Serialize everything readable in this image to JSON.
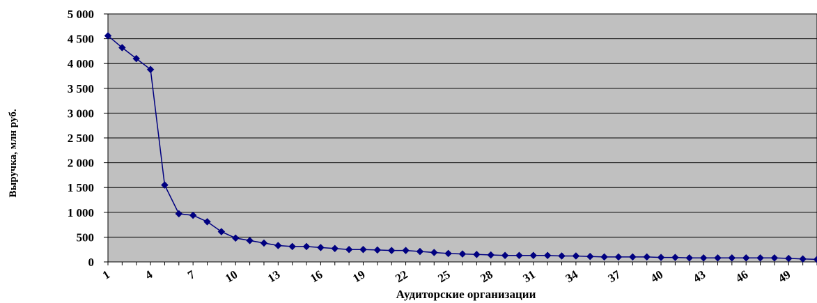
{
  "chart_data": {
    "type": "line",
    "xlabel": "Аудиторские организации",
    "ylabel": "Выручка, млн руб.",
    "ylim": [
      0,
      5000
    ],
    "y_ticks": [
      "0",
      "500",
      "1 000",
      "1 500",
      "2 000",
      "2 500",
      "3 000",
      "3 500",
      "4 000",
      "4 500",
      "5 000"
    ],
    "x_ticks": [
      "1",
      "4",
      "7",
      "10",
      "13",
      "16",
      "19",
      "22",
      "25",
      "28",
      "31",
      "34",
      "37",
      "40",
      "43",
      "46",
      "49"
    ],
    "grid": true,
    "legend": "none",
    "colors": {
      "plot_bg": "#c0c0c0",
      "line": "#000080",
      "grid": "#000000"
    },
    "x": [
      1,
      2,
      3,
      4,
      5,
      6,
      7,
      8,
      9,
      10,
      11,
      12,
      13,
      14,
      15,
      16,
      17,
      18,
      19,
      20,
      21,
      22,
      23,
      24,
      25,
      26,
      27,
      28,
      29,
      30,
      31,
      32,
      33,
      34,
      35,
      36,
      37,
      38,
      39,
      40,
      41,
      42,
      43,
      44,
      45,
      46,
      47,
      48,
      49,
      50,
      51
    ],
    "series": [
      {
        "values": [
          4560,
          4320,
          4100,
          3880,
          1550,
          970,
          940,
          810,
          610,
          480,
          430,
          380,
          330,
          310,
          310,
          290,
          270,
          250,
          250,
          240,
          230,
          230,
          210,
          190,
          170,
          160,
          150,
          140,
          130,
          130,
          130,
          130,
          120,
          120,
          110,
          100,
          100,
          100,
          100,
          90,
          90,
          80,
          80,
          80,
          80,
          80,
          80,
          80,
          70,
          60,
          50
        ]
      }
    ]
  }
}
